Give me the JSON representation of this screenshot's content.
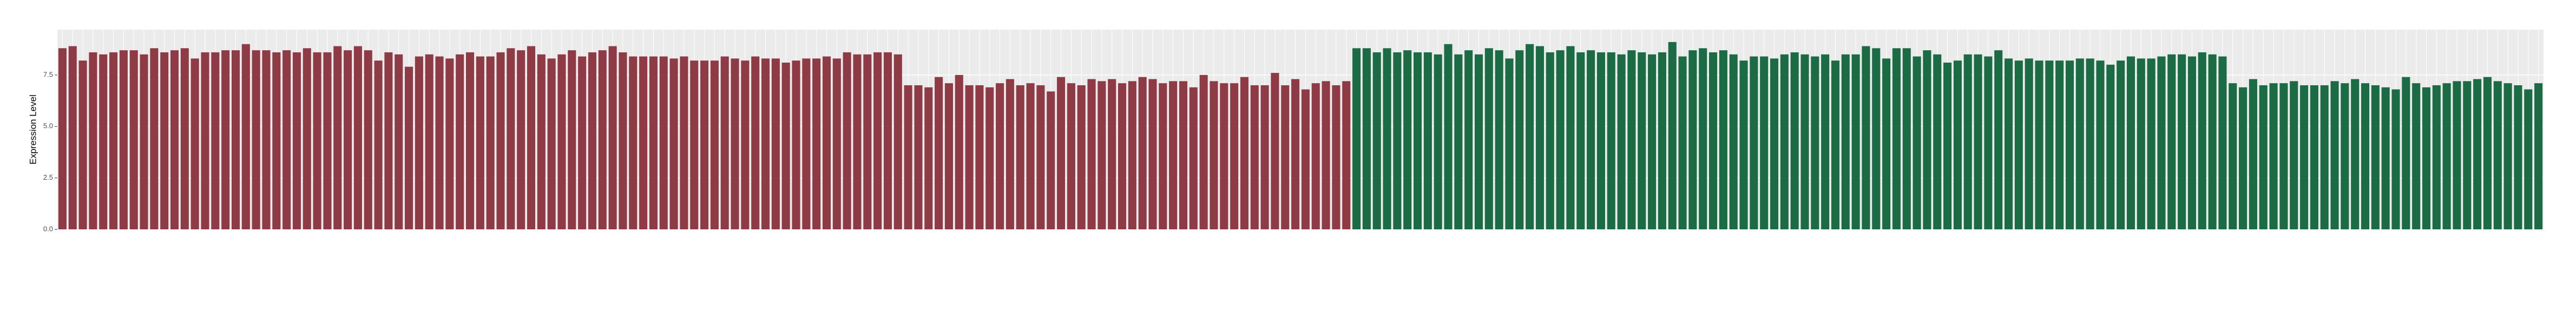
{
  "chart_data": {
    "type": "bar",
    "y_label": "Expression Level",
    "categories": [
      null,
      null,
      null,
      null,
      null,
      null,
      null,
      null,
      null,
      null,
      null,
      null,
      null,
      null,
      null,
      null,
      null,
      null,
      null,
      null,
      null,
      null,
      null,
      null,
      null,
      null,
      null,
      null,
      null,
      null,
      null,
      null,
      null,
      null,
      null,
      null,
      null,
      null,
      null,
      null,
      null,
      null,
      null,
      null,
      null,
      null,
      null,
      null,
      null,
      null,
      null,
      null,
      null,
      null,
      null,
      null,
      null,
      null,
      null,
      null,
      null,
      null,
      null,
      null,
      null,
      null,
      null,
      null,
      null,
      null,
      null,
      null,
      null,
      null,
      null,
      null,
      null,
      null,
      null,
      null,
      null,
      null,
      null,
      null,
      null,
      null,
      null,
      null,
      null,
      null,
      null,
      null,
      null,
      null,
      null,
      null,
      null,
      null,
      null,
      null,
      null,
      null,
      null,
      null,
      null,
      null,
      null,
      null,
      null,
      null,
      null,
      null,
      null,
      null,
      null,
      null,
      null,
      null,
      null,
      null,
      null,
      null,
      null,
      null,
      null,
      null,
      null,
      null,
      null,
      null,
      null,
      null,
      null,
      null,
      null,
      null,
      null,
      null,
      null,
      null,
      null,
      null,
      null,
      null,
      null,
      null,
      null,
      null,
      null,
      null,
      null,
      null,
      null,
      null,
      null,
      null,
      null,
      null,
      null,
      null,
      null,
      null,
      null,
      null,
      null,
      null,
      null,
      null,
      null,
      null,
      null,
      null,
      null,
      null,
      null,
      null,
      null,
      null,
      null,
      null,
      null,
      null,
      null,
      null,
      null,
      null,
      null,
      null,
      null,
      null,
      null,
      null,
      null,
      null,
      null,
      null,
      null,
      null,
      null,
      null,
      null,
      null,
      null,
      null,
      null,
      null,
      null,
      null,
      null,
      null,
      null,
      null,
      null,
      null,
      null,
      null,
      null,
      null,
      null,
      null,
      null,
      null,
      null,
      null,
      null,
      null,
      null,
      null,
      null,
      null,
      null,
      null,
      null,
      null,
      null,
      null,
      null,
      null,
      null,
      null,
      null,
      null,
      null,
      null
    ],
    "values": [
      8.8,
      8.9,
      8.2,
      8.6,
      8.5,
      8.6,
      8.7,
      8.7,
      8.5,
      8.8,
      8.6,
      8.7,
      8.8,
      8.3,
      8.6,
      8.6,
      8.7,
      8.7,
      9.0,
      8.7,
      8.7,
      8.6,
      8.7,
      8.6,
      8.8,
      8.6,
      8.6,
      8.9,
      8.7,
      8.9,
      8.7,
      8.2,
      8.6,
      8.5,
      7.9,
      8.4,
      8.5,
      8.4,
      8.3,
      8.5,
      8.6,
      8.4,
      8.4,
      8.6,
      8.8,
      8.7,
      8.9,
      8.5,
      8.3,
      8.5,
      8.7,
      8.4,
      8.6,
      8.7,
      8.9,
      8.6,
      8.4,
      8.4,
      8.4,
      8.4,
      8.3,
      8.4,
      8.2,
      8.2,
      8.2,
      8.4,
      8.3,
      8.2,
      8.4,
      8.3,
      8.3,
      8.1,
      8.2,
      8.3,
      8.3,
      8.4,
      8.3,
      8.6,
      8.5,
      8.5,
      8.6,
      8.6,
      8.5,
      7.0,
      7.0,
      6.9,
      7.4,
      7.1,
      7.5,
      7.0,
      7.0,
      6.9,
      7.1,
      7.3,
      7.0,
      7.1,
      7.0,
      6.7,
      7.4,
      7.1,
      7.0,
      7.3,
      7.2,
      7.3,
      7.1,
      7.2,
      7.4,
      7.3,
      7.1,
      7.2,
      7.2,
      6.9,
      7.5,
      7.2,
      7.1,
      7.1,
      7.4,
      7.0,
      7.0,
      7.6,
      7.0,
      7.3,
      6.8,
      7.1,
      7.2,
      7.0,
      7.2,
      8.8,
      8.8,
      8.6,
      8.8,
      8.6,
      8.7,
      8.6,
      8.6,
      8.5,
      9.0,
      8.5,
      8.7,
      8.5,
      8.8,
      8.7,
      8.3,
      8.7,
      9.0,
      8.9,
      8.6,
      8.7,
      8.9,
      8.6,
      8.7,
      8.6,
      8.6,
      8.5,
      8.7,
      8.6,
      8.5,
      8.6,
      9.1,
      8.4,
      8.7,
      8.8,
      8.6,
      8.7,
      8.5,
      8.2,
      8.4,
      8.4,
      8.3,
      8.5,
      8.6,
      8.5,
      8.4,
      8.5,
      8.2,
      8.5,
      8.5,
      8.9,
      8.8,
      8.3,
      8.8,
      8.8,
      8.4,
      8.7,
      8.5,
      8.1,
      8.2,
      8.5,
      8.5,
      8.4,
      8.7,
      8.3,
      8.2,
      8.3,
      8.2,
      8.2,
      8.2,
      8.2,
      8.3,
      8.3,
      8.2,
      8.0,
      8.2,
      8.4,
      8.3,
      8.3,
      8.4,
      8.5,
      8.5,
      8.4,
      8.6,
      8.5,
      8.4,
      7.1,
      6.9,
      7.3,
      7.0,
      7.1,
      7.1,
      7.2,
      7.0,
      7.0,
      7.0,
      7.2,
      7.1,
      7.3,
      7.1,
      7.0,
      6.9,
      6.8,
      7.4,
      7.1,
      6.9,
      7.0,
      7.1,
      7.2,
      7.2,
      7.3,
      7.4,
      7.2,
      7.1,
      7.0,
      6.8,
      7.1
    ],
    "colors": [
      "#8e3b46",
      "#8e3b46",
      "#8e3b46",
      "#8e3b46",
      "#8e3b46",
      "#8e3b46",
      "#8e3b46",
      "#8e3b46",
      "#8e3b46",
      "#8e3b46",
      "#8e3b46",
      "#8e3b46",
      "#8e3b46",
      "#8e3b46",
      "#8e3b46",
      "#8e3b46",
      "#8e3b46",
      "#8e3b46",
      "#8e3b46",
      "#8e3b46",
      "#8e3b46",
      "#8e3b46",
      "#8e3b46",
      "#8e3b46",
      "#8e3b46",
      "#8e3b46",
      "#8e3b46",
      "#8e3b46",
      "#8e3b46",
      "#8e3b46",
      "#8e3b46",
      "#8e3b46",
      "#8e3b46",
      "#8e3b46",
      "#8e3b46",
      "#8e3b46",
      "#8e3b46",
      "#8e3b46",
      "#8e3b46",
      "#8e3b46",
      "#8e3b46",
      "#8e3b46",
      "#8e3b46",
      "#8e3b46",
      "#8e3b46",
      "#8e3b46",
      "#8e3b46",
      "#8e3b46",
      "#8e3b46",
      "#8e3b46",
      "#8e3b46",
      "#8e3b46",
      "#8e3b46",
      "#8e3b46",
      "#8e3b46",
      "#8e3b46",
      "#8e3b46",
      "#8e3b46",
      "#8e3b46",
      "#8e3b46",
      "#8e3b46",
      "#8e3b46",
      "#8e3b46",
      "#8e3b46",
      "#8e3b46",
      "#8e3b46",
      "#8e3b46",
      "#8e3b46",
      "#8e3b46",
      "#8e3b46",
      "#8e3b46",
      "#8e3b46",
      "#8e3b46",
      "#8e3b46",
      "#8e3b46",
      "#8e3b46",
      "#8e3b46",
      "#8e3b46",
      "#8e3b46",
      "#8e3b46",
      "#8e3b46",
      "#8e3b46",
      "#8e3b46",
      "#8e3b46",
      "#8e3b46",
      "#8e3b46",
      "#8e3b46",
      "#8e3b46",
      "#8e3b46",
      "#8e3b46",
      "#8e3b46",
      "#8e3b46",
      "#8e3b46",
      "#8e3b46",
      "#8e3b46",
      "#8e3b46",
      "#8e3b46",
      "#8e3b46",
      "#8e3b46",
      "#8e3b46",
      "#8e3b46",
      "#8e3b46",
      "#8e3b46",
      "#8e3b46",
      "#8e3b46",
      "#8e3b46",
      "#8e3b46",
      "#8e3b46",
      "#8e3b46",
      "#8e3b46",
      "#8e3b46",
      "#8e3b46",
      "#8e3b46",
      "#8e3b46",
      "#8e3b46",
      "#8e3b46",
      "#8e3b46",
      "#8e3b46",
      "#8e3b46",
      "#8e3b46",
      "#8e3b46",
      "#8e3b46",
      "#8e3b46",
      "#8e3b46",
      "#8e3b46",
      "#8e3b46",
      "#8e3b46",
      "#1b6b45",
      "#1b6b45",
      "#1b6b45",
      "#1b6b45",
      "#1b6b45",
      "#1b6b45",
      "#1b6b45",
      "#1b6b45",
      "#1b6b45",
      "#1b6b45",
      "#1b6b45",
      "#1b6b45",
      "#1b6b45",
      "#1b6b45",
      "#1b6b45",
      "#1b6b45",
      "#1b6b45",
      "#1b6b45",
      "#1b6b45",
      "#1b6b45",
      "#1b6b45",
      "#1b6b45",
      "#1b6b45",
      "#1b6b45",
      "#1b6b45",
      "#1b6b45",
      "#1b6b45",
      "#1b6b45",
      "#1b6b45",
      "#1b6b45",
      "#1b6b45",
      "#1b6b45",
      "#1b6b45",
      "#1b6b45",
      "#1b6b45",
      "#1b6b45",
      "#1b6b45",
      "#1b6b45",
      "#1b6b45",
      "#1b6b45",
      "#1b6b45",
      "#1b6b45",
      "#1b6b45",
      "#1b6b45",
      "#1b6b45",
      "#1b6b45",
      "#1b6b45",
      "#1b6b45",
      "#1b6b45",
      "#1b6b45",
      "#1b6b45",
      "#1b6b45",
      "#1b6b45",
      "#1b6b45",
      "#1b6b45",
      "#1b6b45",
      "#1b6b45",
      "#1b6b45",
      "#1b6b45",
      "#1b6b45",
      "#1b6b45",
      "#1b6b45",
      "#1b6b45",
      "#1b6b45",
      "#1b6b45",
      "#1b6b45",
      "#1b6b45",
      "#1b6b45",
      "#1b6b45",
      "#1b6b45",
      "#1b6b45",
      "#1b6b45",
      "#1b6b45",
      "#1b6b45",
      "#1b6b45",
      "#1b6b45",
      "#1b6b45",
      "#1b6b45",
      "#1b6b45",
      "#1b6b45",
      "#1b6b45",
      "#1b6b45",
      "#1b6b45",
      "#1b6b45",
      "#1b6b45",
      "#1b6b45",
      "#1b6b45",
      "#1b6b45",
      "#1b6b45",
      "#1b6b45",
      "#1b6b45",
      "#1b6b45",
      "#1b6b45",
      "#1b6b45",
      "#1b6b45",
      "#1b6b45",
      "#1b6b45",
      "#1b6b45",
      "#1b6b45",
      "#1b6b45",
      "#1b6b45",
      "#1b6b45",
      "#1b6b45",
      "#1b6b45",
      "#1b6b45",
      "#1b6b45",
      "#1b6b45",
      "#1b6b45",
      "#1b6b45",
      "#1b6b45",
      "#1b6b45",
      "#1b6b45",
      "#1b6b45",
      "#1b6b45",
      "#1b6b45",
      "#1b6b45",
      "#1b6b45"
    ],
    "ylim": [
      0,
      9.7
    ],
    "yticks": [
      {
        "value": 0,
        "label": "0.0"
      },
      2.5,
      {
        "value": 5,
        "label": "5.0"
      },
      7.5
    ],
    "grid": true
  }
}
